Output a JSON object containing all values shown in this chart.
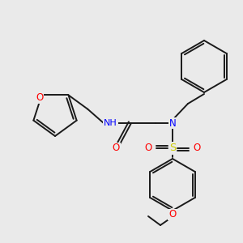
{
  "bg_color": "#eaeaea",
  "bond_color": "#1a1a1a",
  "atom_colors": {
    "O": "#ff0000",
    "N": "#0000ff",
    "S": "#cccc00",
    "H": "#008080",
    "C": "#1a1a1a"
  },
  "figsize": [
    3.0,
    3.0
  ],
  "dpi": 100
}
